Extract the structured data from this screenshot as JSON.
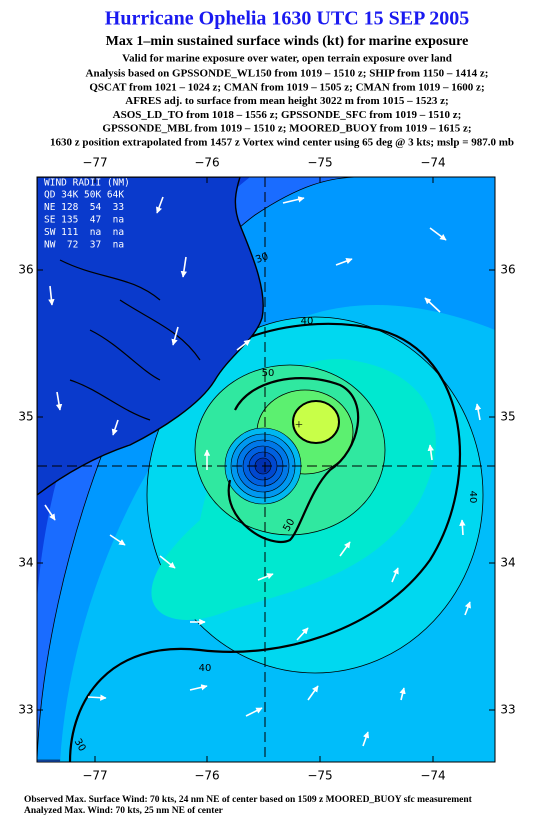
{
  "title": "Hurricane Ophelia 1630 UTC 15 SEP 2005",
  "subtitle": "Max 1–min sustained surface winds (kt) for marine exposure",
  "exposure_note": "Valid for marine exposure over water, open terrain exposure over land",
  "analysis": [
    "Analysis based on  GPSSONDE_WL150 from 1019 – 1510 z;  SHIP from 1150 – 1414 z;",
    "QSCAT from 1021 – 1024 z;  CMAN from 1019 – 1505 z;  CMAN from 1019 – 1600 z;",
    "AFRES adj. to surface from mean height 3022 m from 1015 – 1523 z;",
    "ASOS_LD_TO from 1018 – 1556 z;  GPSSONDE_SFC from 1019 – 1510 z;",
    "GPSSONDE_MBL from 1019 – 1510 z;  MOORED_BUOY from 1019 – 1615 z;"
  ],
  "position_note": "1630 z position extrapolated from 1457 z Vortex wind center using 65 deg @ 3 kts; mslp = 987.0 mb",
  "lon_labels": [
    "−77",
    "−76",
    "−75",
    "−74"
  ],
  "lat_labels": [
    "36",
    "35",
    "34",
    "33"
  ],
  "wind_radii": {
    "header": "WIND RADII (NM)",
    "rows": [
      "QD 34K 50K 64K",
      "NE 128  54  33",
      "SE 135  47  na",
      "SW 111  na  na",
      "NW  72  37  na"
    ]
  },
  "contour_labels": [
    "30",
    "40",
    "50",
    "40",
    "50",
    "40",
    "30"
  ],
  "footer": [
    "Observed Max. Surface Wind: 70 kts, 24 nm NE of center based on 1509 z MOORED_BUOY sfc measurement",
    "Analyzed Max. Wind: 70 kts, 25 nm NE of center"
  ]
}
